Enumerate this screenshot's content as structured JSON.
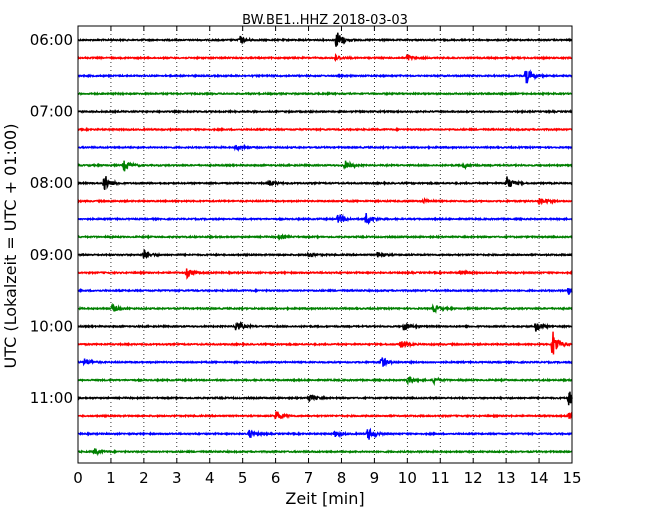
{
  "chart_data": {
    "type": "line",
    "title": "BW.BE1..HHZ 2018-03-03",
    "xlabel": "Zeit  [min]",
    "ylabel": "UTC (Lokalzeit = UTC + 01:00)",
    "xlim": [
      0,
      15
    ],
    "x_ticks": [
      "0",
      "1",
      "2",
      "3",
      "4",
      "5",
      "6",
      "7",
      "8",
      "9",
      "10",
      "11",
      "12",
      "13",
      "14",
      "15"
    ],
    "y_ticks": [
      {
        "label": "06:00",
        "trace": 0
      },
      {
        "label": "07:00",
        "trace": 4
      },
      {
        "label": "08:00",
        "trace": 8
      },
      {
        "label": "09:00",
        "trace": 12
      },
      {
        "label": "10:00",
        "trace": 16
      },
      {
        "label": "11:00",
        "trace": 20
      }
    ],
    "grid": {
      "vertical_dotted": true
    },
    "colors": [
      "#000000",
      "#ff0000",
      "#0000ff",
      "#008000"
    ],
    "traces": [
      {
        "start": "06:00",
        "events": [
          {
            "t": 4.9,
            "amp": 4
          },
          {
            "t": 7.85,
            "amp": 10
          }
        ]
      },
      {
        "start": "06:15",
        "events": [
          {
            "t": 7.8,
            "amp": 3
          },
          {
            "t": 10.0,
            "amp": 3
          }
        ]
      },
      {
        "start": "06:30",
        "events": [
          {
            "t": 13.6,
            "amp": 9
          }
        ]
      },
      {
        "start": "06:45",
        "events": []
      },
      {
        "start": "07:00",
        "events": []
      },
      {
        "start": "07:15",
        "events": []
      },
      {
        "start": "07:30",
        "events": [
          {
            "t": 4.8,
            "amp": 3
          }
        ]
      },
      {
        "start": "07:45",
        "events": [
          {
            "t": 1.4,
            "amp": 6
          },
          {
            "t": 8.1,
            "amp": 5
          },
          {
            "t": 11.7,
            "amp": 3
          }
        ]
      },
      {
        "start": "08:00",
        "events": [
          {
            "t": 0.8,
            "amp": 9
          },
          {
            "t": 5.8,
            "amp": 3
          },
          {
            "t": 13.0,
            "amp": 8
          }
        ]
      },
      {
        "start": "08:15",
        "events": [
          {
            "t": 14.0,
            "amp": 4
          },
          {
            "t": 10.5,
            "amp": 2
          }
        ]
      },
      {
        "start": "08:30",
        "events": [
          {
            "t": 7.9,
            "amp": 5
          },
          {
            "t": 8.75,
            "amp": 6
          }
        ]
      },
      {
        "start": "08:45",
        "events": [
          {
            "t": 6.1,
            "amp": 2
          }
        ]
      },
      {
        "start": "09:00",
        "events": [
          {
            "t": 2.0,
            "amp": 5
          },
          {
            "t": 7.0,
            "amp": 3
          },
          {
            "t": 9.1,
            "amp": 3
          }
        ]
      },
      {
        "start": "09:15",
        "events": [
          {
            "t": 3.3,
            "amp": 5
          },
          {
            "t": 11.6,
            "amp": 2
          }
        ]
      },
      {
        "start": "09:30",
        "events": [
          {
            "t": 14.9,
            "amp": 4
          }
        ]
      },
      {
        "start": "09:45",
        "events": [
          {
            "t": 1.05,
            "amp": 4
          },
          {
            "t": 10.8,
            "amp": 4
          }
        ]
      },
      {
        "start": "10:00",
        "events": [
          {
            "t": 4.8,
            "amp": 6
          },
          {
            "t": 9.9,
            "amp": 4
          },
          {
            "t": 13.9,
            "amp": 5
          }
        ]
      },
      {
        "start": "10:15",
        "events": [
          {
            "t": 9.8,
            "amp": 4
          },
          {
            "t": 14.4,
            "amp": 16
          }
        ]
      },
      {
        "start": "10:30",
        "events": [
          {
            "t": 0.2,
            "amp": 4
          },
          {
            "t": 9.2,
            "amp": 6
          }
        ]
      },
      {
        "start": "10:45",
        "events": [
          {
            "t": 10.0,
            "amp": 4
          },
          {
            "t": 10.8,
            "amp": 3
          }
        ]
      },
      {
        "start": "11:00",
        "events": [
          {
            "t": 7.0,
            "amp": 4
          },
          {
            "t": 14.9,
            "amp": 8
          }
        ]
      },
      {
        "start": "11:15",
        "events": [
          {
            "t": 6.0,
            "amp": 6
          },
          {
            "t": 14.9,
            "amp": 3
          }
        ]
      },
      {
        "start": "11:30",
        "events": [
          {
            "t": 5.2,
            "amp": 4
          },
          {
            "t": 7.8,
            "amp": 3
          },
          {
            "t": 8.8,
            "amp": 7
          }
        ]
      },
      {
        "start": "11:45",
        "events": [
          {
            "t": 0.5,
            "amp": 3
          }
        ]
      }
    ]
  }
}
